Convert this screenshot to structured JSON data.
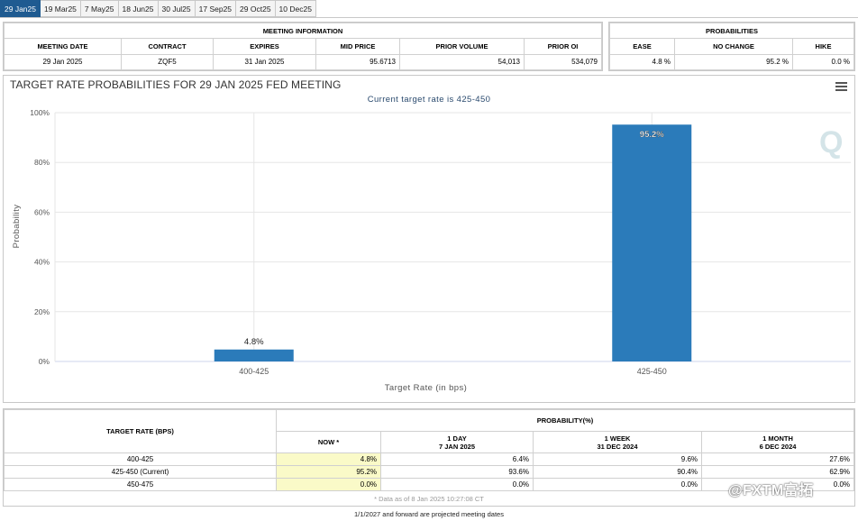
{
  "tabs": [
    "29 Jan25",
    "19 Mar25",
    "7 May25",
    "18 Jun25",
    "30 Jul25",
    "17 Sep25",
    "29 Oct25",
    "10 Dec25"
  ],
  "active_tab": 0,
  "meeting_info": {
    "header": "MEETING INFORMATION",
    "columns": [
      "MEETING DATE",
      "CONTRACT",
      "EXPIRES",
      "MID PRICE",
      "PRIOR VOLUME",
      "PRIOR OI"
    ],
    "values": [
      "29 Jan 2025",
      "ZQF5",
      "31 Jan 2025",
      "95.6713",
      "54,013",
      "534,079"
    ]
  },
  "probabilities": {
    "header": "PROBABILITIES",
    "columns": [
      "EASE",
      "NO CHANGE",
      "HIKE"
    ],
    "values": [
      "4.8 %",
      "95.2 %",
      "0.0 %"
    ]
  },
  "chart_header": {
    "title": "TARGET RATE PROBABILITIES FOR 29 JAN 2025 FED MEETING",
    "subtitle": "Current target rate is 425-450",
    "watermark": "Q"
  },
  "chart_data": {
    "type": "bar",
    "categories": [
      "400-425",
      "425-450"
    ],
    "values": [
      4.8,
      95.2
    ],
    "data_labels": [
      "4.8%",
      "95.2%"
    ],
    "title": "TARGET RATE PROBABILITIES FOR 29 JAN 2025 FED MEETING",
    "subtitle": "Current target rate is 425-450",
    "xlabel": "Target Rate (in bps)",
    "ylabel": "Probability",
    "ylim": [
      0,
      100
    ],
    "yticks": [
      0,
      20,
      40,
      60,
      80,
      100
    ],
    "ytick_labels": [
      "0%",
      "20%",
      "40%",
      "60%",
      "80%",
      "100%"
    ],
    "grid": true,
    "bar_color": "#2b7bba"
  },
  "history": {
    "target_rate_header": "TARGET RATE (BPS)",
    "probability_header": "PROBABILITY(%)",
    "cols": [
      {
        "label": "NOW *",
        "date": ""
      },
      {
        "label": "1 DAY",
        "date": "7 JAN 2025"
      },
      {
        "label": "1 WEEK",
        "date": "31 DEC 2024"
      },
      {
        "label": "1 MONTH",
        "date": "6 DEC 2024"
      }
    ],
    "rows": [
      {
        "rate": "400-425",
        "values": [
          "4.8%",
          "6.4%",
          "9.6%",
          "27.6%"
        ]
      },
      {
        "rate": "425-450 (Current)",
        "values": [
          "95.2%",
          "93.6%",
          "90.4%",
          "62.9%"
        ]
      },
      {
        "rate": "450-475",
        "values": [
          "0.0%",
          "0.0%",
          "0.0%",
          "0.0%"
        ]
      }
    ],
    "footnote": "* Data as of 8 Jan 2025 10:27:08 CT",
    "projected_note": "1/1/2027 and forward are projected meeting dates"
  },
  "overlay_brand": "@FXTM富拓",
  "colors": {
    "accent": "#1f5b91",
    "bar": "#2b7bba",
    "now_highlight": "#fafac8"
  }
}
